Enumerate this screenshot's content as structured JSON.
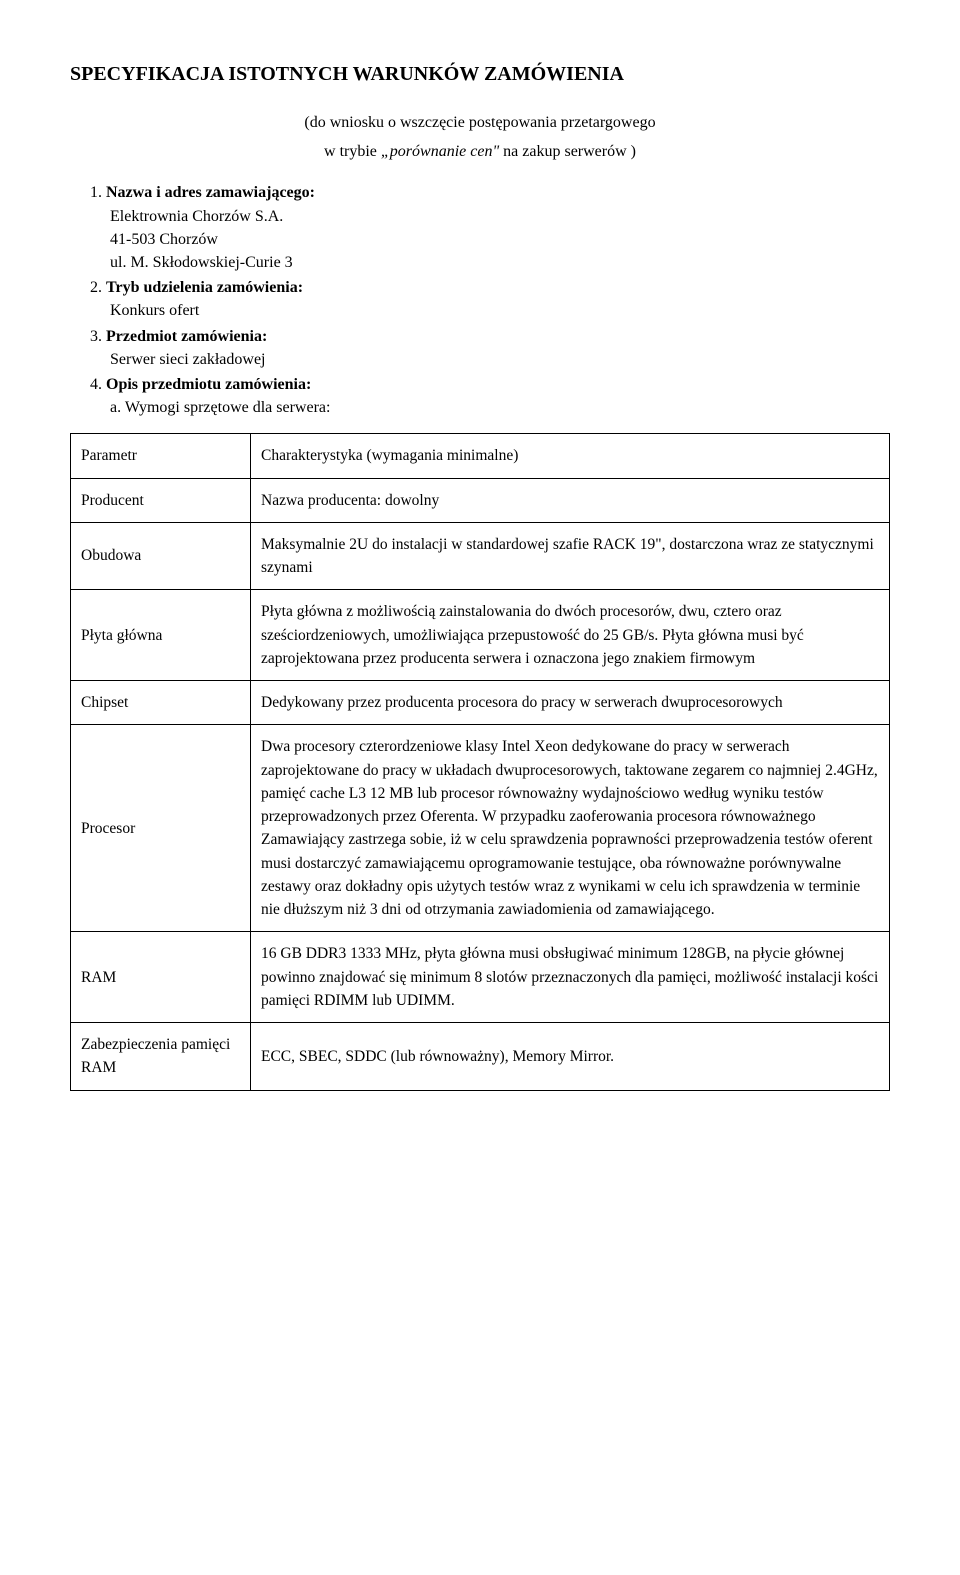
{
  "title": "SPECYFIKACJA ISTOTNYCH WARUNKÓW ZAMÓWIENIA",
  "subtitle1": "(do wniosku o wszczęcie postępowania przetargowego",
  "subtitle2_prefix": "w trybie ",
  "subtitle2_italic": "„porównanie cen\"",
  "subtitle2_suffix": " na zakup serwerów )",
  "items": {
    "n1": "1.",
    "n1_label": "Nazwa i adres zamawiającego:",
    "n1_line1": "Elektrownia Chorzów S.A.",
    "n1_line2": "41-503 Chorzów",
    "n1_line3": "ul. M. Skłodowskiej-Curie 3",
    "n2": "2.",
    "n2_label": "Tryb udzielenia zamówienia:",
    "n2_line1": "Konkurs ofert",
    "n3": "3.",
    "n3_label": "Przedmiot zamówienia:",
    "n3_line1": "Serwer sieci zakładowej",
    "n4": "4.",
    "n4_label": "Opis przedmiotu zamówienia:",
    "n4_a": "a.",
    "n4_a_text": "Wymogi sprzętowe dla serwera:"
  },
  "table": {
    "rows": [
      {
        "label": "Parametr",
        "value": "Charakterystyka (wymagania minimalne)"
      },
      {
        "label": "Producent",
        "value": "Nazwa producenta: dowolny"
      },
      {
        "label": "Obudowa",
        "value": "Maksymalnie 2U do instalacji w standardowej szafie RACK 19\", dostarczona wraz ze statycznymi szynami"
      },
      {
        "label": "Płyta główna",
        "value": "Płyta główna z możliwością zainstalowania do dwóch procesorów, dwu, cztero oraz sześciordzeniowych, umożliwiająca przepustowość do 25 GB/s. Płyta główna musi być zaprojektowana przez producenta serwera i oznaczona jego znakiem firmowym"
      },
      {
        "label": "Chipset",
        "value": "Dedykowany przez producenta procesora do pracy w serwerach dwuprocesorowych"
      },
      {
        "label": "Procesor",
        "value": "Dwa procesory czterordzeniowe klasy Intel Xeon dedykowane do pracy w serwerach zaprojektowane do pracy w układach dwuprocesorowych, taktowane zegarem co najmniej 2.4GHz, pamięć cache L3 12 MB lub procesor równoważny wydajnościowo według wyniku testów przeprowadzonych przez Oferenta. W przypadku zaoferowania procesora równoważnego Zamawiający zastrzega sobie, iż w celu sprawdzenia poprawności przeprowadzenia testów oferent musi dostarczyć zamawiającemu oprogramowanie testujące, oba równoważne porównywalne zestawy oraz dokładny opis użytych testów wraz z wynikami w celu ich sprawdzenia w terminie nie dłuższym niż 3 dni od otrzymania zawiadomienia od zamawiającego."
      },
      {
        "label": "RAM",
        "value": "16 GB DDR3 1333 MHz, płyta główna musi obsługiwać minimum 128GB, na płycie głównej powinno znajdować się minimum 8 slotów przeznaczonych dla pamięci, możliwość instalacji kości pamięci RDIMM lub UDIMM."
      },
      {
        "label": "Zabezpieczenia pamięci RAM",
        "value": "ECC, SBEC, SDDC (lub równoważny), Memory Mirror."
      }
    ]
  }
}
